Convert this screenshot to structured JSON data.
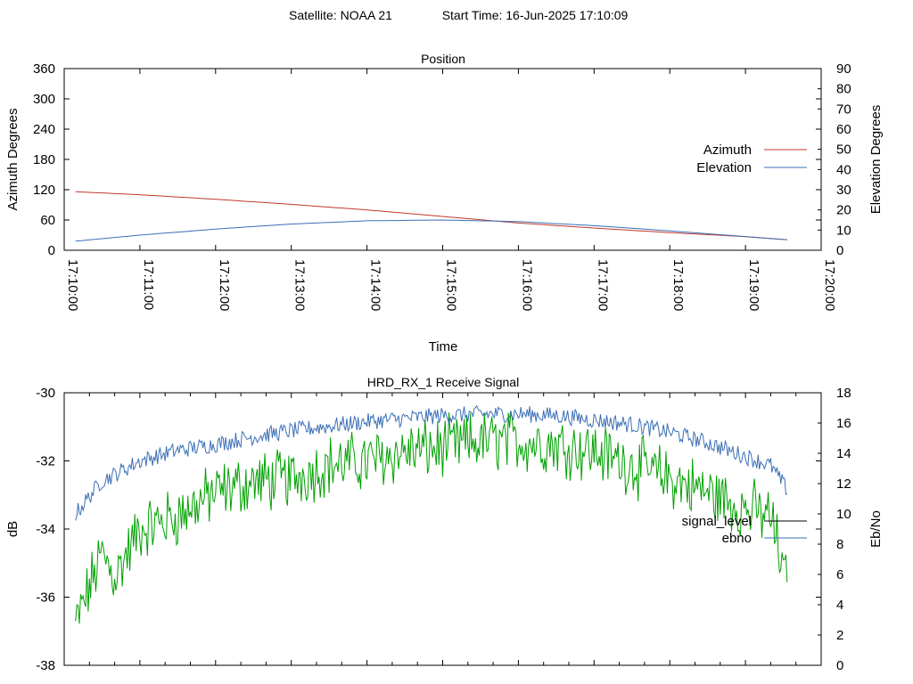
{
  "header": {
    "satellite": "Satellite: NOAA 21",
    "start_time": "Start Time: 16-Jun-2025 17:10:09"
  },
  "chart_data": [
    {
      "type": "line",
      "title": "Position",
      "xlabel": "Time",
      "ylabel": "Azimuth Degrees",
      "y2label": "Elevation Degrees",
      "x_ticks": [
        "17:10:00",
        "17:11:00",
        "17:12:00",
        "17:13:00",
        "17:14:00",
        "17:15:00",
        "17:16:00",
        "17:17:00",
        "17:18:00",
        "17:19:00",
        "17:20:00"
      ],
      "xlim": [
        "17:10:00",
        "17:20:00"
      ],
      "ylim": [
        0,
        360
      ],
      "y_ticks": [
        0,
        60,
        120,
        180,
        240,
        300,
        360
      ],
      "y2lim": [
        0,
        90
      ],
      "y2_ticks": [
        0,
        10,
        20,
        30,
        40,
        50,
        60,
        70,
        80,
        90
      ],
      "legend_position": "right",
      "series": [
        {
          "name": "Azimuth",
          "axis": "y",
          "color": "#c0392b",
          "x": [
            "17:10:09",
            "17:11:00",
            "17:12:00",
            "17:13:00",
            "17:14:00",
            "17:15:00",
            "17:16:00",
            "17:17:00",
            "17:18:00",
            "17:19:00",
            "17:19:33"
          ],
          "values": [
            116,
            110,
            101,
            91,
            80,
            67,
            54,
            44,
            35,
            27,
            21
          ]
        },
        {
          "name": "Elevation",
          "axis": "y2",
          "color": "#3b6fb6",
          "x": [
            "17:10:09",
            "17:11:00",
            "17:12:00",
            "17:13:00",
            "17:14:00",
            "17:15:00",
            "17:16:00",
            "17:17:00",
            "17:18:00",
            "17:19:00",
            "17:19:33"
          ],
          "values": [
            4.5,
            7.5,
            10.5,
            13.0,
            14.6,
            15.0,
            14.2,
            12.2,
            9.6,
            6.8,
            5.2
          ]
        }
      ]
    },
    {
      "type": "line",
      "title": "HRD_RX_1 Receive Signal",
      "ylabel": "dB",
      "y2label": "Eb/No",
      "xlim": [
        "17:10:00",
        "17:20:00"
      ],
      "ylim": [
        -38,
        -30
      ],
      "y_ticks": [
        -38,
        -36,
        -34,
        -32,
        -30
      ],
      "y2lim": [
        0,
        18
      ],
      "y2_ticks": [
        0,
        2,
        4,
        6,
        8,
        10,
        12,
        14,
        16,
        18
      ],
      "legend_position": "right",
      "series": [
        {
          "name": "signal_level",
          "axis": "y",
          "color": "#00a000",
          "x": [
            "17:10:09",
            "17:10:30",
            "17:10:40",
            "17:11:00",
            "17:11:30",
            "17:12:00",
            "17:12:30",
            "17:13:00",
            "17:13:30",
            "17:14:00",
            "17:14:30",
            "17:15:00",
            "17:15:30",
            "17:16:00",
            "17:16:30",
            "17:17:00",
            "17:17:30",
            "17:18:00",
            "17:18:30",
            "17:19:00",
            "17:19:20",
            "17:19:33"
          ],
          "values": [
            -36.7,
            -34.6,
            -35.3,
            -33.9,
            -33.5,
            -32.8,
            -32.5,
            -32.4,
            -32.0,
            -31.9,
            -31.6,
            -31.5,
            -31.3,
            -31.3,
            -31.4,
            -31.6,
            -32.0,
            -32.4,
            -32.8,
            -33.3,
            -33.5,
            -35.6
          ]
        },
        {
          "name": "ebno",
          "axis": "y2",
          "color": "#3b6fb6",
          "x": [
            "17:10:09",
            "17:10:30",
            "17:10:40",
            "17:11:00",
            "17:11:30",
            "17:12:00",
            "17:12:30",
            "17:13:00",
            "17:13:30",
            "17:14:00",
            "17:14:30",
            "17:15:00",
            "17:15:30",
            "17:16:00",
            "17:16:30",
            "17:17:00",
            "17:17:30",
            "17:18:00",
            "17:18:30",
            "17:19:00",
            "17:19:20",
            "17:19:33"
          ],
          "values": [
            10.0,
            12.2,
            12.6,
            13.5,
            14.2,
            14.6,
            15.1,
            15.5,
            15.8,
            16.1,
            16.3,
            16.5,
            16.6,
            16.6,
            16.5,
            16.2,
            15.9,
            15.4,
            14.7,
            13.8,
            13.2,
            11.6
          ]
        }
      ]
    }
  ]
}
